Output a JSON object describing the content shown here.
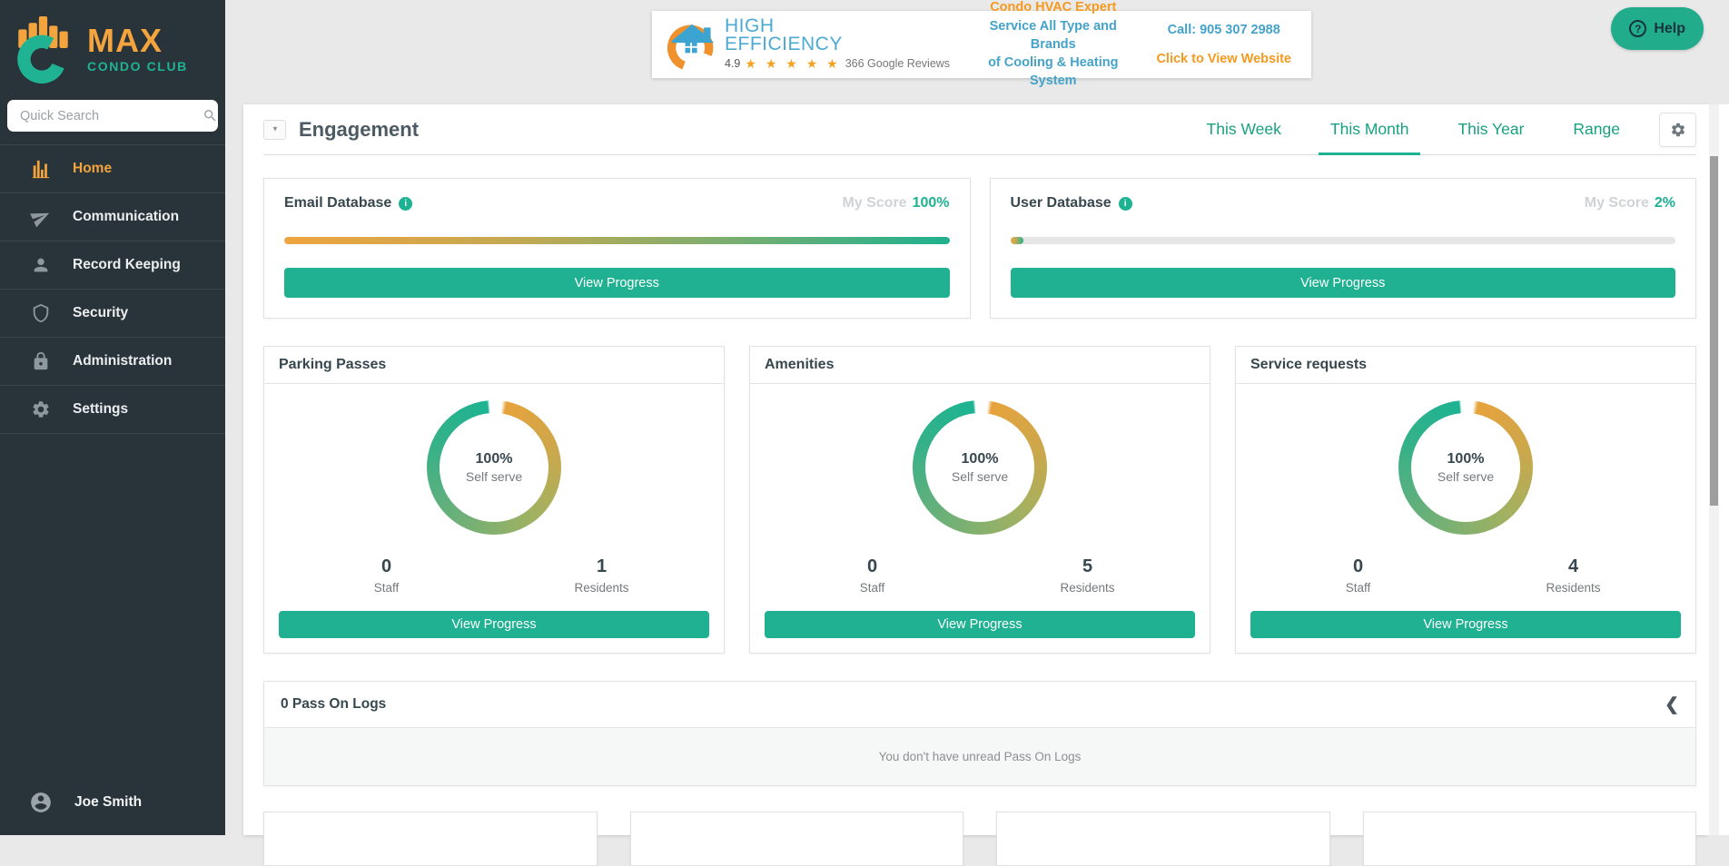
{
  "brand": {
    "name_primary": "MAX",
    "name_secondary": "CONDO CLUB"
  },
  "colors": {
    "accent_teal": "#1fb191",
    "accent_orange": "#f3a43d",
    "sidebar_bg": "#29343a",
    "banner_blue": "#45a3c9",
    "banner_orange": "#f5991f"
  },
  "sidebar": {
    "search_placeholder": "Quick Search",
    "items": [
      {
        "label": "Home",
        "icon": "bar-chart-icon",
        "active": true
      },
      {
        "label": "Communication",
        "icon": "paper-plane-icon",
        "active": false
      },
      {
        "label": "Record Keeping",
        "icon": "person-icon",
        "active": false
      },
      {
        "label": "Security",
        "icon": "shield-icon",
        "active": false
      },
      {
        "label": "Administration",
        "icon": "lock-icon",
        "active": false
      },
      {
        "label": "Settings",
        "icon": "gear-icon",
        "active": false
      }
    ],
    "user_name": "Joe Smith"
  },
  "banner": {
    "logo_line1": "HIGH",
    "logo_line2": "EFFICIENCY",
    "rating": "4.9",
    "stars": "★ ★ ★ ★ ★",
    "reviews": "366 Google Reviews",
    "headline": "Condo HVAC Expert",
    "subline1": "Service All Type and Brands",
    "subline2": "of Cooling & Heating System",
    "call": "Call: 905 307 2988",
    "cta": "Click to View Website"
  },
  "help": {
    "label": "Help",
    "icon_glyph": "?"
  },
  "engagement": {
    "title": "Engagement",
    "collapse_glyph": "▼",
    "tabs": [
      {
        "label": "This Week",
        "active": false
      },
      {
        "label": "This Month",
        "active": true
      },
      {
        "label": "This Year",
        "active": false
      },
      {
        "label": "Range",
        "active": false
      }
    ]
  },
  "score_cards": [
    {
      "title": "Email Database",
      "score_label": "My Score",
      "score": "100%",
      "progress_pct": 100,
      "button_label": "View Progress"
    },
    {
      "title": "User Database",
      "score_label": "My Score",
      "score": "2%",
      "progress_pct": 2,
      "button_label": "View Progress"
    }
  ],
  "donut_cards": [
    {
      "title": "Parking Passes",
      "center_pct": "100%",
      "center_label": "Self serve",
      "staff_value": "0",
      "staff_label": "Staff",
      "residents_value": "1",
      "residents_label": "Residents",
      "button_label": "View Progress"
    },
    {
      "title": "Amenities",
      "center_pct": "100%",
      "center_label": "Self serve",
      "staff_value": "0",
      "staff_label": "Staff",
      "residents_value": "5",
      "residents_label": "Residents",
      "button_label": "View Progress"
    },
    {
      "title": "Service requests",
      "center_pct": "100%",
      "center_label": "Self serve",
      "staff_value": "0",
      "staff_label": "Staff",
      "residents_value": "4",
      "residents_label": "Residents",
      "button_label": "View Progress"
    }
  ],
  "pass_on_logs": {
    "title": "0 Pass On Logs",
    "collapse_glyph": "❮",
    "empty_text": "You don't have unread Pass On Logs"
  }
}
